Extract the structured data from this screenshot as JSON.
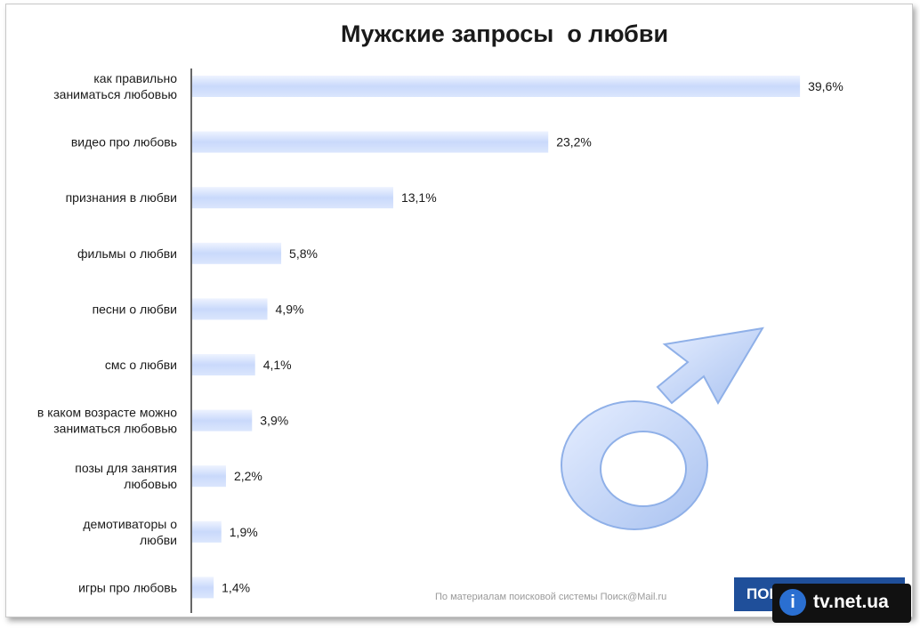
{
  "chart_data": {
    "type": "bar",
    "orientation": "horizontal",
    "title": "Мужские запросы  о любви",
    "categories": [
      [
        "как правильно",
        "заниматься любовью"
      ],
      [
        "видео про любовь"
      ],
      [
        "признания в любви"
      ],
      [
        "фильмы о любви"
      ],
      [
        "песни о любви"
      ],
      [
        "смс о любви"
      ],
      [
        "в каком возрасте можно",
        "заниматься любовью"
      ],
      [
        "позы для занятия",
        "любовью"
      ],
      [
        "демотиваторы о",
        "любви"
      ],
      [
        "игры про любовь"
      ]
    ],
    "values": [
      39.6,
      23.2,
      13.1,
      5.8,
      4.9,
      4.1,
      3.9,
      2.2,
      1.9,
      1.4
    ],
    "value_labels": [
      "39,6%",
      "23,2%",
      "13,1%",
      "5,8%",
      "4,9%",
      "4,1%",
      "3,9%",
      "2,2%",
      "1,9%",
      "1,4%"
    ],
    "xlim": [
      0,
      40
    ],
    "grid": false,
    "bar_color": "#c9d9fb",
    "bar_highlight": "#eef3ff"
  },
  "footer": {
    "source": "По материалам поисковой системы Поиск@Mail.ru",
    "badge": "ПОИСК",
    "logo_letter": "i",
    "logo_text": "tv.net.ua"
  },
  "decor": {
    "male_symbol_icon": "male-symbol-icon",
    "symbol_color": "#b9cdf4"
  }
}
